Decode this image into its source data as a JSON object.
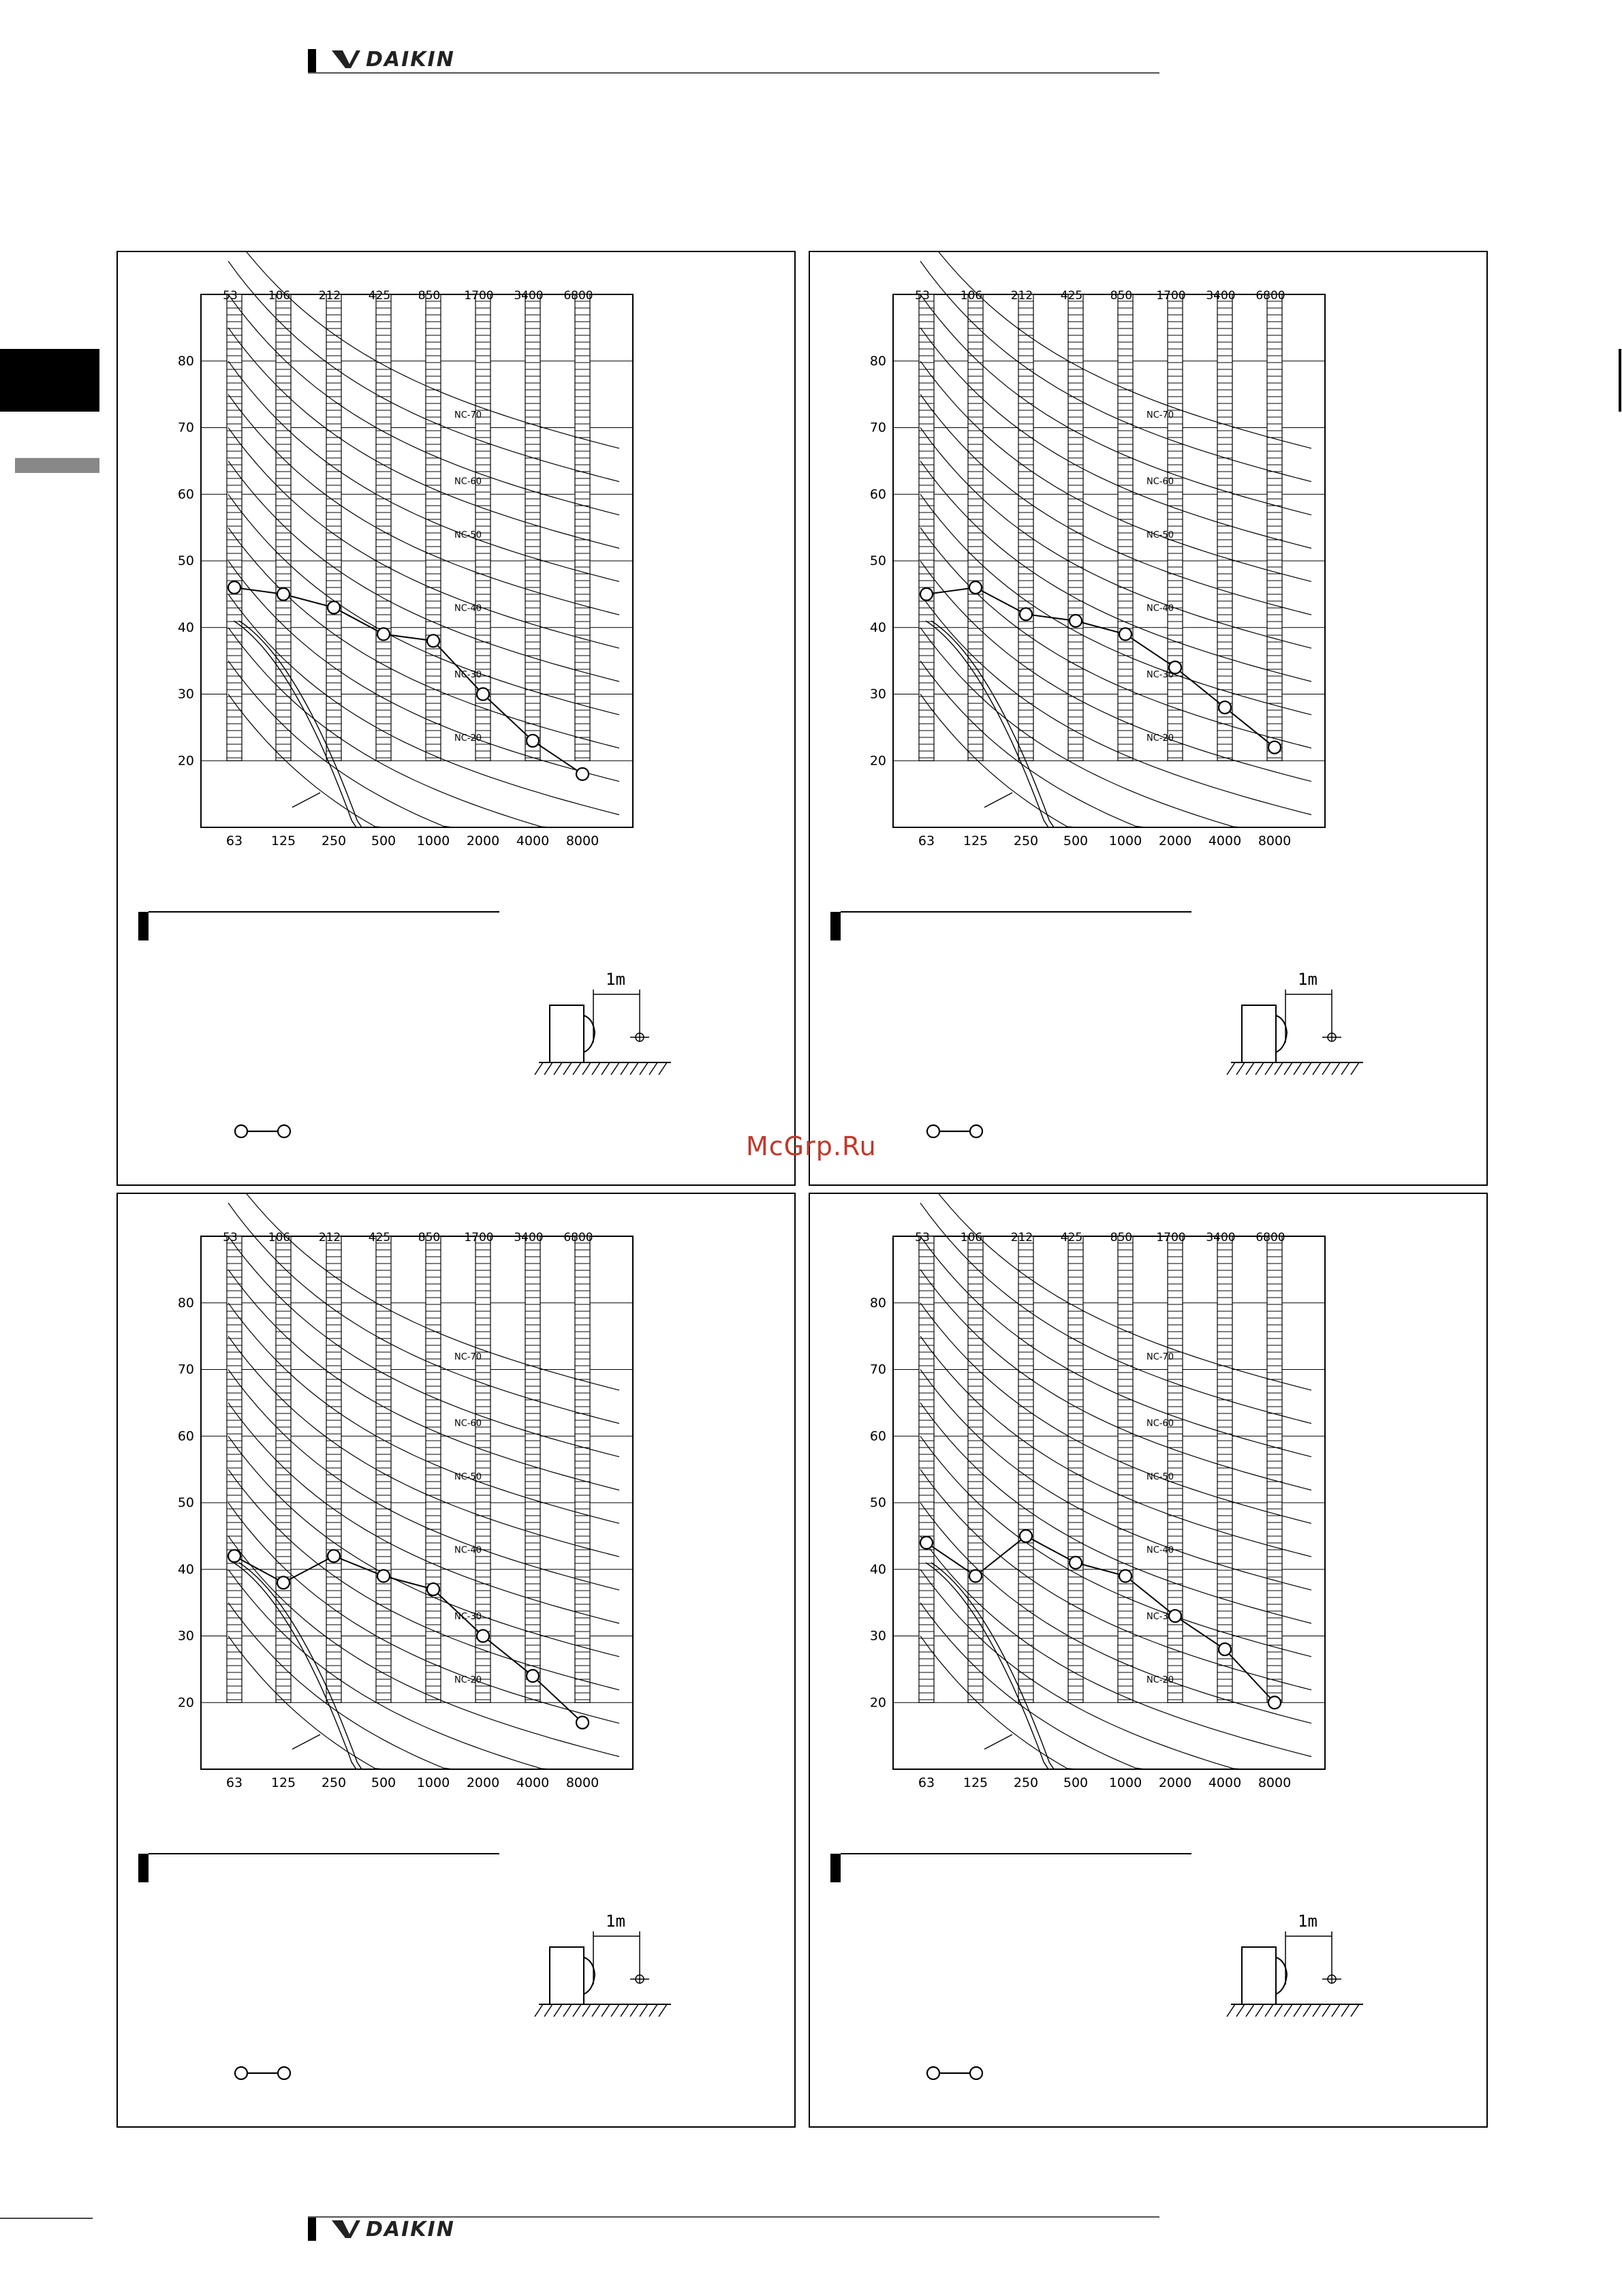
{
  "header": {
    "brand": "DAIKIN"
  },
  "footer": {
    "brand": "DAIKIN"
  },
  "watermark": "McGrp.Ru",
  "chart_data": [
    {
      "type": "line",
      "title": "",
      "x_bottom": [
        "63",
        "125",
        "250",
        "500",
        "1000",
        "2000",
        "4000",
        "8000"
      ],
      "x_top": [
        "53",
        "106",
        "212",
        "425",
        "850",
        "1700",
        "3400",
        "6800"
      ],
      "y_ticks": [
        "20",
        "30",
        "40",
        "50",
        "60",
        "70",
        "80"
      ],
      "ylim": [
        10,
        90
      ],
      "nc_labels": [
        "NC-70",
        "NC-60",
        "NC-50",
        "NC-40",
        "NC-30",
        "NC-20"
      ],
      "series": [
        {
          "values": [
            46,
            45,
            43,
            39,
            38,
            30,
            23,
            18
          ]
        }
      ],
      "distance_label": "1m"
    },
    {
      "type": "line",
      "title": "",
      "x_bottom": [
        "63",
        "125",
        "250",
        "500",
        "1000",
        "2000",
        "4000",
        "8000"
      ],
      "x_top": [
        "53",
        "106",
        "212",
        "425",
        "850",
        "1700",
        "3400",
        "6800"
      ],
      "y_ticks": [
        "20",
        "30",
        "40",
        "50",
        "60",
        "70",
        "80"
      ],
      "ylim": [
        10,
        90
      ],
      "nc_labels": [
        "NC-70",
        "NC-60",
        "NC-50",
        "NC-40",
        "NC-30",
        "NC-20"
      ],
      "series": [
        {
          "values": [
            45,
            46,
            42,
            41,
            39,
            34,
            28,
            22
          ]
        }
      ],
      "distance_label": "1m"
    },
    {
      "type": "line",
      "title": "",
      "x_bottom": [
        "63",
        "125",
        "250",
        "500",
        "1000",
        "2000",
        "4000",
        "8000"
      ],
      "x_top": [
        "53",
        "106",
        "212",
        "425",
        "850",
        "1700",
        "3400",
        "6800"
      ],
      "y_ticks": [
        "20",
        "30",
        "40",
        "50",
        "60",
        "70",
        "80"
      ],
      "ylim": [
        10,
        90
      ],
      "nc_labels": [
        "NC-70",
        "NC-60",
        "NC-50",
        "NC-40",
        "NC-30",
        "NC-20"
      ],
      "series": [
        {
          "values": [
            42,
            38,
            42,
            39,
            37,
            30,
            24,
            17
          ]
        }
      ],
      "distance_label": "1m"
    },
    {
      "type": "line",
      "title": "",
      "x_bottom": [
        "63",
        "125",
        "250",
        "500",
        "1000",
        "2000",
        "4000",
        "8000"
      ],
      "x_top": [
        "53",
        "106",
        "212",
        "425",
        "850",
        "1700",
        "3400",
        "6800"
      ],
      "y_ticks": [
        "20",
        "30",
        "40",
        "50",
        "60",
        "70",
        "80"
      ],
      "ylim": [
        10,
        90
      ],
      "nc_labels": [
        "NC-70",
        "NC-60",
        "NC-50",
        "NC-40",
        "NC-30",
        "NC-20"
      ],
      "series": [
        {
          "values": [
            44,
            39,
            45,
            41,
            39,
            33,
            28,
            20
          ]
        }
      ],
      "distance_label": "1m"
    }
  ]
}
